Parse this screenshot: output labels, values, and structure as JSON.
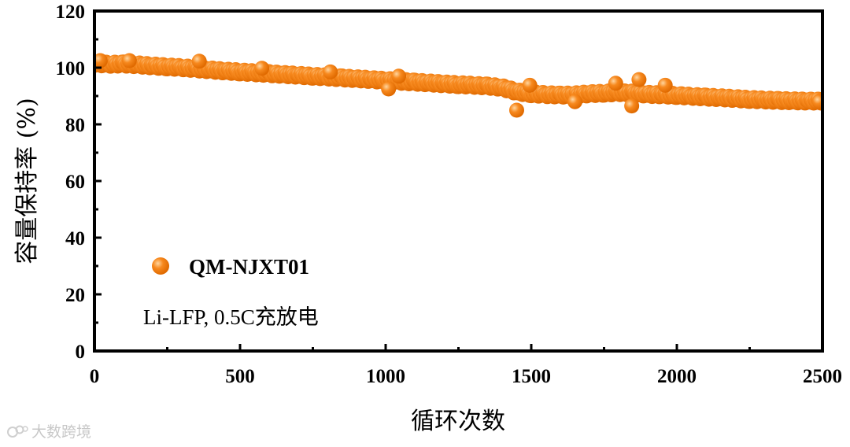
{
  "chart_data": {
    "type": "scatter",
    "title": "",
    "xlabel": "循环次数",
    "ylabel": "容量保持率 (%)",
    "xlim": [
      0,
      2500
    ],
    "ylim": [
      0,
      120
    ],
    "xticks": [
      0,
      500,
      1000,
      1500,
      2000,
      2500
    ],
    "yticks": [
      0,
      20,
      40,
      60,
      80,
      100,
      120
    ],
    "grid": false,
    "legend_position": "bottom-left",
    "series": [
      {
        "name": "QM-NJXT01",
        "color": "#f7891e",
        "marker": "circle",
        "points": [
          [
            0,
            101.5
          ],
          [
            50,
            101.2
          ],
          [
            100,
            101.3
          ],
          [
            150,
            101.0
          ],
          [
            200,
            100.6
          ],
          [
            250,
            100.3
          ],
          [
            300,
            100.0
          ],
          [
            350,
            99.6
          ],
          [
            400,
            99.2
          ],
          [
            450,
            98.8
          ],
          [
            500,
            98.5
          ],
          [
            550,
            98.2
          ],
          [
            600,
            97.9
          ],
          [
            650,
            97.6
          ],
          [
            700,
            97.3
          ],
          [
            750,
            97.0
          ],
          [
            800,
            96.7
          ],
          [
            850,
            96.4
          ],
          [
            900,
            96.1
          ],
          [
            950,
            95.8
          ],
          [
            1000,
            95.5
          ],
          [
            1050,
            95.2
          ],
          [
            1100,
            94.9
          ],
          [
            1150,
            94.6
          ],
          [
            1200,
            94.3
          ],
          [
            1250,
            94.0
          ],
          [
            1300,
            93.8
          ],
          [
            1350,
            93.5
          ],
          [
            1400,
            93.0
          ],
          [
            1450,
            91.5
          ],
          [
            1500,
            90.8
          ],
          [
            1550,
            90.5
          ],
          [
            1600,
            90.3
          ],
          [
            1650,
            90.4
          ],
          [
            1700,
            90.8
          ],
          [
            1750,
            91.0
          ],
          [
            1800,
            91.2
          ],
          [
            1850,
            91.0
          ],
          [
            1900,
            90.6
          ],
          [
            1950,
            90.4
          ],
          [
            2000,
            90.2
          ],
          [
            2050,
            89.9
          ],
          [
            2100,
            89.6
          ],
          [
            2150,
            89.4
          ],
          [
            2200,
            89.1
          ],
          [
            2250,
            88.8
          ],
          [
            2300,
            88.6
          ],
          [
            2350,
            88.4
          ],
          [
            2400,
            88.3
          ],
          [
            2450,
            88.2
          ],
          [
            2500,
            88.2
          ]
        ],
        "outliers": [
          [
            20,
            102.5
          ],
          [
            120,
            102.5
          ],
          [
            360,
            102.3
          ],
          [
            575,
            99.8
          ],
          [
            810,
            98.5
          ],
          [
            1010,
            92.5
          ],
          [
            1045,
            97.0
          ],
          [
            1450,
            85.0
          ],
          [
            1495,
            93.8
          ],
          [
            1650,
            88.0
          ],
          [
            1790,
            94.5
          ],
          [
            1845,
            86.5
          ],
          [
            1870,
            95.8
          ],
          [
            1960,
            93.8
          ],
          [
            2490,
            88.0
          ]
        ]
      }
    ],
    "annotation": "Li-LFP, 0.5C充放电"
  },
  "watermark": {
    "text": "大数跨境"
  }
}
